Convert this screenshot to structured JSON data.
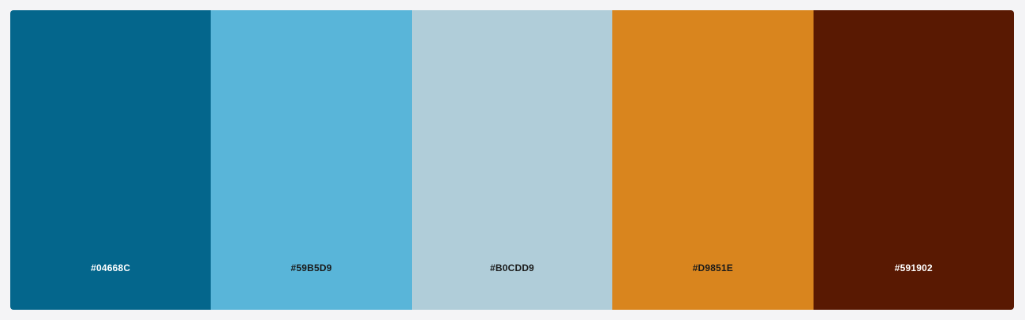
{
  "palette": {
    "swatches": [
      {
        "hex": "#04668C",
        "color": "#04668C",
        "text_color": "#ffffff"
      },
      {
        "hex": "#59B5D9",
        "color": "#59B5D9",
        "text_color": "#1a1a1a"
      },
      {
        "hex": "#B0CDD9",
        "color": "#B0CDD9",
        "text_color": "#1a1a1a"
      },
      {
        "hex": "#D9851E",
        "color": "#D9851E",
        "text_color": "#1a1a1a"
      },
      {
        "hex": "#591902",
        "color": "#591902",
        "text_color": "#ffffff"
      }
    ]
  }
}
